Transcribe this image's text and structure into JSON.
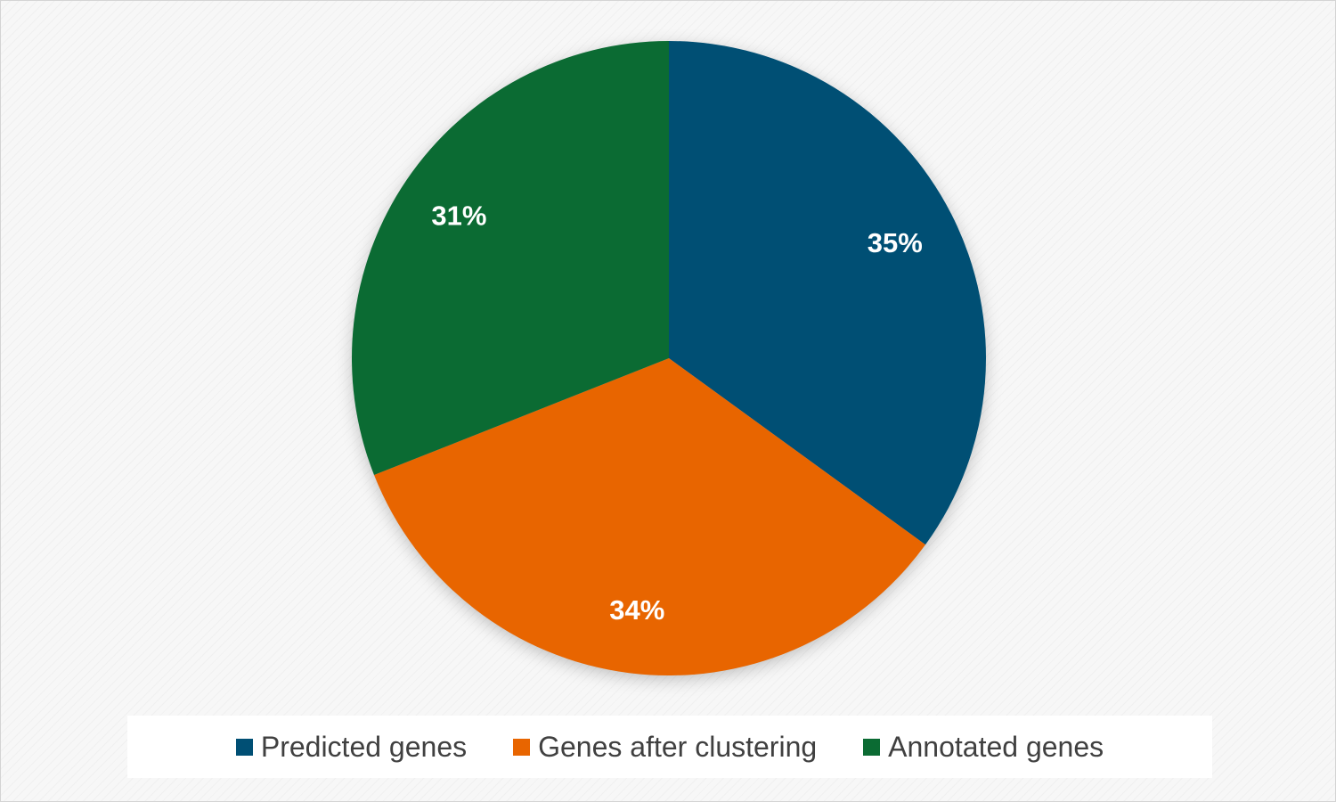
{
  "chart_data": {
    "type": "pie",
    "categories": [
      "Predicted genes",
      "Genes after clustering",
      "Annotated genes"
    ],
    "values": [
      35,
      34,
      31
    ],
    "data_labels": [
      "35%",
      "34%",
      "31%"
    ],
    "colors": [
      "#004f74",
      "#e86500",
      "#0b6b33"
    ],
    "title": "",
    "legend_position": "bottom"
  },
  "legend": {
    "items": [
      {
        "label": "Predicted genes",
        "color": "#004f74"
      },
      {
        "label": "Genes after clustering",
        "color": "#e86500"
      },
      {
        "label": "Annotated genes",
        "color": "#0b6b33"
      }
    ]
  }
}
